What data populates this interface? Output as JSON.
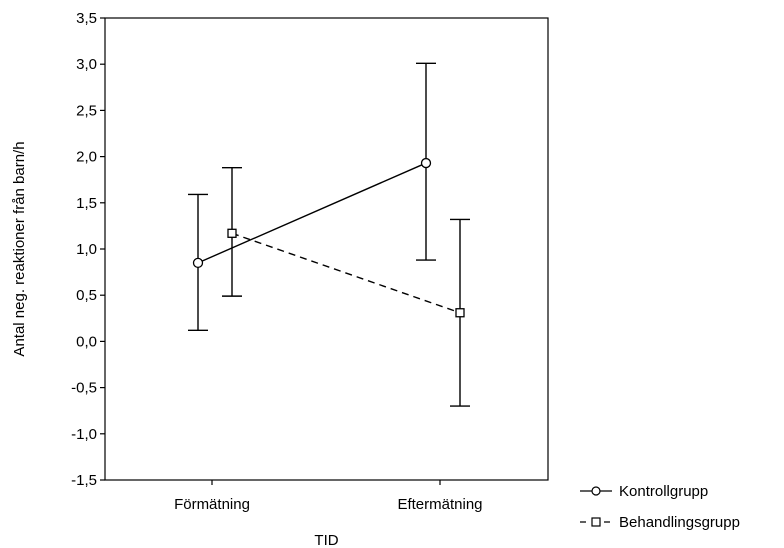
{
  "chart_data": {
    "type": "line",
    "title": "",
    "xlabel": "TID",
    "ylabel": "Antal neg. reaktioner från barn/h",
    "categories": [
      "Förmätning",
      "Eftermätning"
    ],
    "ylim": [
      -1.5,
      3.5
    ],
    "yticks": [
      "-1,5",
      "-1,0",
      "-0,5",
      "0,0",
      "0,5",
      "1,0",
      "1,5",
      "2,0",
      "2,5",
      "3,0",
      "3,5"
    ],
    "ytick_values": [
      -1.5,
      -1.0,
      -0.5,
      0.0,
      0.5,
      1.0,
      1.5,
      2.0,
      2.5,
      3.0,
      3.5
    ],
    "grid": false,
    "legend_position": "bottom-right outside",
    "series": [
      {
        "name": "Kontrollgrupp",
        "marker": "circle",
        "line_style": "solid",
        "values": [
          0.85,
          1.93
        ],
        "error_low": [
          0.12,
          0.88
        ],
        "error_high": [
          1.59,
          3.01
        ]
      },
      {
        "name": "Behandlingsgrupp",
        "marker": "square",
        "line_style": "dashed",
        "values": [
          1.17,
          0.31
        ],
        "error_low": [
          0.49,
          -0.7
        ],
        "error_high": [
          1.88,
          1.32
        ]
      }
    ],
    "colors": {
      "line": "#000000",
      "marker_fill": "#ffffff",
      "background": "#ffffff"
    }
  }
}
